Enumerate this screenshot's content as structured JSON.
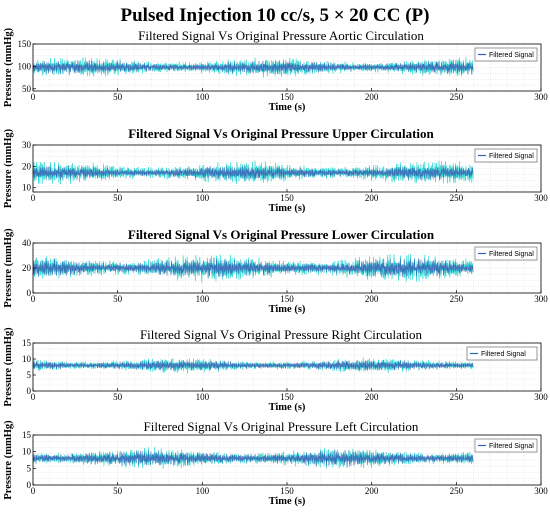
{
  "main_title": "Pulsed Injection 10 cc/s, 5 × 20 CC (P)",
  "colors": {
    "original": "#1fd6d2",
    "filtered": "#2b66b0",
    "magenta": "#d04cd8",
    "grid": "#cfcfcf",
    "axis": "#000000"
  },
  "chart_data": [
    {
      "type": "line",
      "title": "Filtered Signal Vs Original Pressure Aortic Circulation",
      "xlabel": "Time (s)",
      "ylabel": "Pressure (mmHg)",
      "xlim": [
        0,
        300
      ],
      "ylim": [
        45,
        150
      ],
      "xticks": [
        0,
        50,
        100,
        150,
        200,
        250,
        300
      ],
      "yticks": [
        50,
        100,
        150
      ],
      "legend": [
        "Filtered Signal"
      ],
      "legend_position": "top-right",
      "grid": true,
      "series": [
        {
          "name": "",
          "role": "original",
          "x_range": [
            0,
            260
          ],
          "mean": 98,
          "amplitude": 28
        },
        {
          "name": "Filtered Signal",
          "role": "filtered",
          "x_range": [
            0,
            260
          ],
          "mean": 98,
          "amplitude": 22
        }
      ]
    },
    {
      "type": "line",
      "title": "Filtered Signal Vs Original Pressure Upper Circulation",
      "xlabel": "Time (s)",
      "ylabel": "Pressure (mmHg)",
      "xlim": [
        0,
        300
      ],
      "ylim": [
        8,
        30
      ],
      "xticks": [
        0,
        50,
        100,
        150,
        200,
        250,
        300
      ],
      "yticks": [
        10,
        20,
        30
      ],
      "legend": [
        "Filtered Signal"
      ],
      "legend_position": "top-right",
      "grid": true,
      "series": [
        {
          "name": "",
          "role": "original",
          "x_range": [
            0,
            260
          ],
          "mean": 17,
          "amplitude": 7
        },
        {
          "name": "Filtered Signal",
          "role": "filtered",
          "x_range": [
            0,
            260
          ],
          "mean": 17,
          "amplitude": 5
        }
      ]
    },
    {
      "type": "line",
      "title": "Filtered Signal Vs Original Pressure Lower Circulation",
      "xlabel": "Time (s)",
      "ylabel": "Pressure (mmHg)",
      "xlim": [
        0,
        300
      ],
      "ylim": [
        0,
        40
      ],
      "xticks": [
        0,
        50,
        100,
        150,
        200,
        250,
        300
      ],
      "yticks": [
        0,
        20,
        40
      ],
      "legend": [
        "Filtered Signal"
      ],
      "legend_position": "top-right",
      "grid": true,
      "series": [
        {
          "name": "",
          "role": "original",
          "x_range": [
            0,
            260
          ],
          "mean": 20,
          "amplitude": 14
        },
        {
          "name": "Filtered Signal",
          "role": "filtered",
          "x_range": [
            0,
            260
          ],
          "mean": 20,
          "amplitude": 11
        }
      ]
    },
    {
      "type": "line",
      "title": "Filtered Signal Vs Original Pressure Right Circulation",
      "xlabel": "Time (s)",
      "ylabel": "Pressure (mmHg)",
      "xlim": [
        0,
        300
      ],
      "ylim": [
        0,
        15
      ],
      "xticks": [
        0,
        50,
        100,
        150,
        200,
        250,
        300
      ],
      "yticks": [
        0,
        5,
        10,
        15
      ],
      "legend": [
        "Filtered Signal"
      ],
      "legend_position": "top-right",
      "grid": true,
      "series": [
        {
          "name": "",
          "role": "original",
          "x_range": [
            0,
            260
          ],
          "mean": 8,
          "amplitude": 3
        },
        {
          "name": "Filtered Signal",
          "role": "filtered",
          "x_range": [
            0,
            260
          ],
          "mean": 8,
          "amplitude": 2.5
        }
      ]
    },
    {
      "type": "line",
      "title": "Filtered Signal Vs Original Pressure Left Circulation",
      "xlabel": "Time (s)",
      "ylabel": "Pressure (mmHg)",
      "xlim": [
        0,
        300
      ],
      "ylim": [
        0,
        15
      ],
      "xticks": [
        0,
        50,
        100,
        150,
        200,
        250,
        300
      ],
      "yticks": [
        0,
        5,
        10,
        15
      ],
      "legend": [
        "Filtered Signal"
      ],
      "legend_position": "top-right",
      "grid": true,
      "series": [
        {
          "name": "",
          "role": "original",
          "x_range": [
            0,
            260
          ],
          "mean": 8,
          "amplitude": 4
        },
        {
          "name": "Filtered Signal",
          "role": "filtered",
          "x_range": [
            0,
            260
          ],
          "mean": 8,
          "amplitude": 3.5
        }
      ]
    }
  ]
}
